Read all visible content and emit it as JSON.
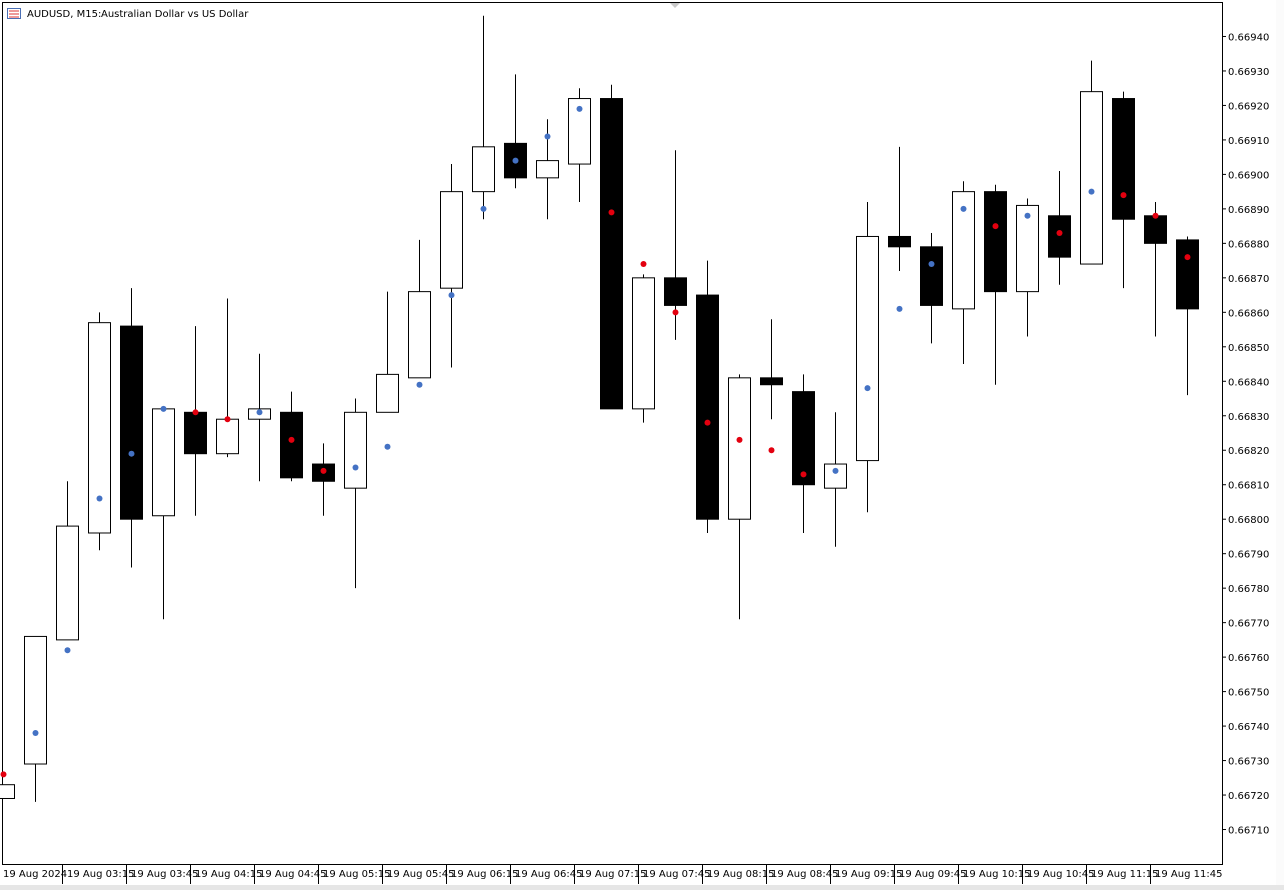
{
  "chart_data": {
    "type": "candlestick",
    "title": "AUDUSD, M15:",
    "subtitle": "Australian Dollar vs US Dollar",
    "categories": [
      "19 Aug 2024",
      null,
      "19 Aug 03:15",
      null,
      "19 Aug 03:45",
      null,
      "19 Aug 04:15",
      null,
      "19 Aug 04:45",
      null,
      "19 Aug 05:15",
      null,
      "19 Aug 05:45",
      null,
      "19 Aug 06:15",
      null,
      "19 Aug 06:45",
      null,
      "19 Aug 07:15",
      null,
      "19 Aug 07:45",
      null,
      "19 Aug 08:15",
      null,
      "19 Aug 08:45",
      null,
      "19 Aug 09:15",
      null,
      "19 Aug 09:45",
      null,
      "19 Aug 10:15",
      null,
      "19 Aug 10:45",
      null,
      "19 Aug 11:15",
      null,
      "19 Aug 11:45",
      null
    ],
    "open": [
      0.66719,
      0.66729,
      0.66765,
      0.66796,
      0.66856,
      0.66801,
      0.66831,
      0.66819,
      0.66829,
      0.66831,
      0.66816,
      0.66809,
      0.66831,
      0.66841,
      0.66867,
      0.66895,
      0.66909,
      0.66899,
      0.66903,
      0.66922,
      0.66832,
      0.6687,
      0.66865,
      0.668,
      0.66841,
      0.66837,
      0.66809,
      0.66817,
      0.66882,
      0.66879,
      0.66861,
      0.66895,
      0.66866,
      0.66888,
      0.66874,
      0.66922,
      0.66888,
      0.66881
    ],
    "high": [
      0.66723,
      0.66766,
      0.66811,
      0.6686,
      0.66867,
      0.66832,
      0.66856,
      0.66864,
      0.66848,
      0.66837,
      0.66822,
      0.66835,
      0.66866,
      0.66881,
      0.66903,
      0.66946,
      0.66929,
      0.66916,
      0.66925,
      0.66926,
      0.66871,
      0.66907,
      0.66875,
      0.66842,
      0.66858,
      0.66842,
      0.66831,
      0.66892,
      0.66908,
      0.66883,
      0.66898,
      0.66897,
      0.66893,
      0.66901,
      0.66933,
      0.66924,
      0.66892,
      0.66882
    ],
    "low": [
      0.66719,
      0.66718,
      0.66765,
      0.66791,
      0.66786,
      0.66771,
      0.66801,
      0.66818,
      0.66811,
      0.66811,
      0.66801,
      0.6678,
      0.66831,
      0.66841,
      0.66844,
      0.66887,
      0.66896,
      0.66887,
      0.66892,
      0.66832,
      0.66828,
      0.66852,
      0.66796,
      0.66771,
      0.66829,
      0.66796,
      0.66792,
      0.66802,
      0.66872,
      0.66851,
      0.66845,
      0.66839,
      0.66853,
      0.66868,
      0.66874,
      0.66867,
      0.66853,
      0.66836
    ],
    "close": [
      0.66723,
      0.66766,
      0.66798,
      0.66857,
      0.668,
      0.66832,
      0.66819,
      0.66829,
      0.66832,
      0.66812,
      0.66811,
      0.66831,
      0.66842,
      0.66866,
      0.66895,
      0.66908,
      0.66899,
      0.66904,
      0.66922,
      0.66832,
      0.6687,
      0.66862,
      0.668,
      0.66841,
      0.66839,
      0.6681,
      0.66816,
      0.66882,
      0.66879,
      0.66862,
      0.66895,
      0.66866,
      0.66891,
      0.66876,
      0.66924,
      0.66887,
      0.6688,
      0.66861
    ],
    "up_color": "#ffffff",
    "down_color": "#000000",
    "indicator": {
      "values": [
        0.66726,
        0.66738,
        0.66762,
        0.66806,
        0.66819,
        0.66832,
        0.66831,
        0.66829,
        0.66831,
        0.66823,
        0.66814,
        0.66815,
        0.66821,
        0.66839,
        0.66865,
        0.6689,
        0.66904,
        0.66911,
        0.66919,
        0.66889,
        0.66874,
        0.6686,
        0.66828,
        0.66823,
        0.6682,
        0.66813,
        0.66814,
        0.66838,
        0.66861,
        0.66874,
        0.6689,
        0.66885,
        0.66888,
        0.66883,
        0.66895,
        0.66894,
        0.66888,
        0.66876
      ],
      "colors": [
        "#e3000f",
        "#4472c4",
        "#4472c4",
        "#4472c4",
        "#4472c4",
        "#4472c4",
        "#e3000f",
        "#e3000f",
        "#4472c4",
        "#e3000f",
        "#e3000f",
        "#4472c4",
        "#4472c4",
        "#4472c4",
        "#4472c4",
        "#4472c4",
        "#4472c4",
        "#4472c4",
        "#4472c4",
        "#e3000f",
        "#e3000f",
        "#e3000f",
        "#e3000f",
        "#e3000f",
        "#e3000f",
        "#e3000f",
        "#4472c4",
        "#4472c4",
        "#4472c4",
        "#4472c4",
        "#4472c4",
        "#e3000f",
        "#4472c4",
        "#e3000f",
        "#4472c4",
        "#e3000f",
        "#e3000f",
        "#e3000f"
      ]
    },
    "ylim": [
      0.667,
      0.6695
    ],
    "yticks": [
      {
        "value": 0.6671,
        "label": "0.66710"
      },
      {
        "value": 0.6672,
        "label": "0.66720"
      },
      {
        "value": 0.6673,
        "label": "0.66730"
      },
      {
        "value": 0.6674,
        "label": "0.66740"
      },
      {
        "value": 0.6675,
        "label": "0.66750"
      },
      {
        "value": 0.6676,
        "label": "0.66760"
      },
      {
        "value": 0.6677,
        "label": "0.66770"
      },
      {
        "value": 0.6678,
        "label": "0.66780"
      },
      {
        "value": 0.6679,
        "label": "0.66790"
      },
      {
        "value": 0.668,
        "label": "0.66800"
      },
      {
        "value": 0.6681,
        "label": "0.66810"
      },
      {
        "value": 0.6682,
        "label": "0.66820"
      },
      {
        "value": 0.6683,
        "label": "0.66830"
      },
      {
        "value": 0.6684,
        "label": "0.66840"
      },
      {
        "value": 0.6685,
        "label": "0.66850"
      },
      {
        "value": 0.6686,
        "label": "0.66860"
      },
      {
        "value": 0.6687,
        "label": "0.66870"
      },
      {
        "value": 0.6688,
        "label": "0.66880"
      },
      {
        "value": 0.6689,
        "label": "0.66890"
      },
      {
        "value": 0.669,
        "label": "0.66900"
      },
      {
        "value": 0.6691,
        "label": "0.66910"
      },
      {
        "value": 0.6692,
        "label": "0.66920"
      },
      {
        "value": 0.6693,
        "label": "0.66930"
      },
      {
        "value": 0.6694,
        "label": "0.66940"
      }
    ],
    "grid": false
  }
}
